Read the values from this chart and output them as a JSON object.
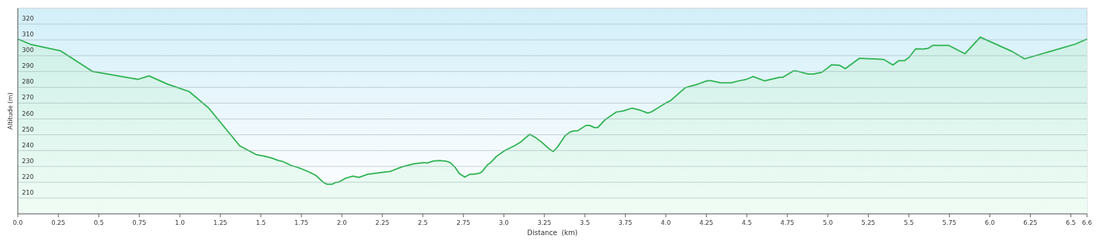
{
  "chart_data": {
    "type": "area",
    "xlabel": "Distance  (km)",
    "ylabel": "Altitude (m)",
    "xlim": [
      0,
      6.6
    ],
    "ylim": [
      200,
      330
    ],
    "xticks": [
      {
        "value": 0,
        "label": "0.0"
      },
      0.25,
      0.5,
      0.75,
      {
        "value": 1,
        "label": "1.0"
      },
      1.25,
      1.5,
      1.75,
      {
        "value": 2,
        "label": "2.0"
      },
      2.25,
      2.5,
      2.75,
      {
        "value": 3,
        "label": "3.0"
      },
      3.25,
      3.5,
      3.75,
      {
        "value": 4,
        "label": "4.0"
      },
      4.25,
      4.5,
      4.75,
      {
        "value": 5,
        "label": "5.0"
      },
      5.25,
      5.5,
      5.75,
      {
        "value": 6,
        "label": "6.0"
      },
      6.25,
      6.5,
      6.6
    ],
    "yticks": [
      210,
      220,
      230,
      240,
      250,
      260,
      270,
      280,
      290,
      300,
      310,
      320
    ],
    "grid": "y",
    "series": [
      {
        "color": "#34b556",
        "x": [
          0,
          0.02,
          0.083,
          0.265,
          0.462,
          0.74,
          0.81,
          0.924,
          1.058,
          1.18,
          1.37,
          1.47,
          1.52,
          1.57,
          1.606,
          1.636,
          1.689,
          1.727,
          1.788,
          1.84,
          1.886,
          1.909,
          1.94,
          1.955,
          1.985,
          2.023,
          2.068,
          2.106,
          2.159,
          2.25,
          2.302,
          2.37,
          2.445,
          2.505,
          2.527,
          2.564,
          2.602,
          2.64,
          2.669,
          2.699,
          2.726,
          2.759,
          2.789,
          2.811,
          2.849,
          2.864,
          2.901,
          2.916,
          2.954,
          3.006,
          3.066,
          3.103,
          3.159,
          3.193,
          3.23,
          3.283,
          3.305,
          3.331,
          3.38,
          3.41,
          3.432,
          3.455,
          3.507,
          3.53,
          3.56,
          3.58,
          3.626,
          3.693,
          3.738,
          3.79,
          3.843,
          3.889,
          3.912,
          4.002,
          4.031,
          4.076,
          4.121,
          4.151,
          4.189,
          4.256,
          4.278,
          4.338,
          4.406,
          4.443,
          4.493,
          4.539,
          4.609,
          4.703,
          4.721,
          4.787,
          4.808,
          4.878,
          4.913,
          4.962,
          4.997,
          5.024,
          5.073,
          5.108,
          5.196,
          5.346,
          5.402,
          5.437,
          5.472,
          5.5,
          5.542,
          5.591,
          5.619,
          5.647,
          5.745,
          5.846,
          5.941,
          6.137,
          6.215,
          6.528,
          6.591,
          6.6
        ],
        "values": [
          310.4,
          309.7,
          307,
          303,
          290,
          285,
          287.2,
          282,
          277.3,
          266.7,
          243,
          237.5,
          236.5,
          235.2,
          233.8,
          233.1,
          230.5,
          229.4,
          226.9,
          224.3,
          219.9,
          218.7,
          218.7,
          219.6,
          220.3,
          222.5,
          223.8,
          223.1,
          225,
          226.2,
          226.9,
          229.7,
          231.6,
          232.4,
          232.2,
          233.4,
          233.7,
          233.4,
          232.4,
          229.4,
          225.4,
          223.2,
          225,
          225,
          225.7,
          226.5,
          231.2,
          232.1,
          236.3,
          240,
          243.1,
          245.3,
          250.3,
          248.4,
          245.6,
          240.8,
          239.4,
          242.2,
          249.6,
          251.8,
          252.4,
          252.5,
          255.9,
          255.9,
          254.5,
          254.6,
          259.6,
          264.3,
          265.1,
          266.8,
          265.5,
          263.7,
          264.5,
          270.2,
          271.7,
          275.8,
          279.8,
          280.7,
          281.7,
          284.2,
          284.2,
          282.9,
          282.9,
          283.9,
          284.9,
          286.8,
          284.1,
          286.3,
          286.3,
          290.3,
          290.3,
          288.4,
          288.4,
          289.5,
          292.1,
          294.3,
          293.9,
          291.8,
          298.4,
          297.6,
          294.1,
          296.8,
          296.8,
          298.8,
          304.3,
          304.2,
          304.6,
          306.5,
          306.5,
          301.2,
          311.7,
          302.7,
          298,
          307.3,
          310.1,
          310.6
        ]
      }
    ]
  }
}
